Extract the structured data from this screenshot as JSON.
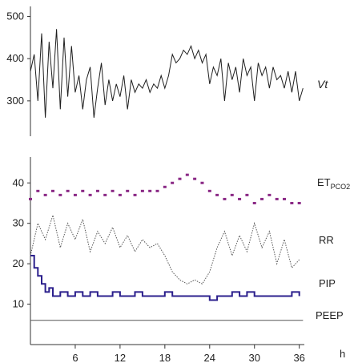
{
  "chart_data": [
    {
      "type": "line",
      "x_unit": "h",
      "xlim": [
        0,
        37
      ],
      "ylim": [
        220,
        520
      ],
      "yticks": [
        "300",
        "400",
        "500"
      ],
      "series": [
        {
          "name": "Vt",
          "color": "#1f1f1f",
          "x": [
            0,
            0.5,
            1,
            1.5,
            2,
            2.5,
            3,
            3.5,
            4,
            4.5,
            5,
            5.5,
            6,
            6.5,
            7,
            7.5,
            8,
            8.5,
            9,
            9.5,
            10,
            10.5,
            11,
            11.5,
            12,
            12.5,
            13,
            13.5,
            14,
            14.5,
            15,
            15.5,
            16,
            16.5,
            17,
            17.5,
            18,
            18.5,
            19,
            19.5,
            20,
            20.5,
            21,
            21.5,
            22,
            22.5,
            23,
            23.5,
            24,
            24.5,
            25,
            25.5,
            26,
            26.5,
            27,
            27.5,
            28,
            28.5,
            29,
            29.5,
            30,
            30.5,
            31,
            31.5,
            32,
            32.5,
            33,
            33.5,
            34,
            34.5,
            35,
            35.5,
            36,
            36.5
          ],
          "values": [
            370,
            410,
            300,
            460,
            260,
            440,
            330,
            470,
            280,
            450,
            310,
            430,
            320,
            360,
            280,
            350,
            380,
            260,
            330,
            390,
            290,
            350,
            300,
            340,
            310,
            360,
            280,
            350,
            320,
            340,
            330,
            350,
            320,
            340,
            330,
            360,
            330,
            360,
            410,
            390,
            400,
            420,
            410,
            430,
            400,
            420,
            390,
            410,
            340,
            380,
            360,
            400,
            300,
            390,
            350,
            380,
            320,
            400,
            360,
            380,
            300,
            390,
            360,
            380,
            330,
            380,
            350,
            360,
            330,
            370,
            320,
            370,
            300,
            330
          ]
        }
      ]
    },
    {
      "type": "line",
      "x_unit": "h",
      "xlim": [
        0,
        37
      ],
      "ylim": [
        0,
        46
      ],
      "xticks": [
        "6",
        "12",
        "18",
        "24",
        "30",
        "36"
      ],
      "xlabel": "h",
      "yticks": [
        "10",
        "20",
        "30",
        "40"
      ],
      "series": [
        {
          "name": "ET",
          "name_sub": "PCO2",
          "style": "dots",
          "color": "#8b2a86",
          "x": [
            0,
            1,
            2,
            3,
            4,
            5,
            6,
            7,
            8,
            9,
            10,
            11,
            12,
            13,
            14,
            15,
            16,
            17,
            18,
            19,
            20,
            21,
            22,
            23,
            24,
            25,
            26,
            27,
            28,
            29,
            30,
            31,
            32,
            33,
            34,
            35,
            36
          ],
          "values": [
            36,
            38,
            37,
            38,
            37,
            38,
            37,
            38,
            37,
            38,
            37,
            38,
            37,
            38,
            37,
            38,
            38,
            38,
            39,
            40,
            41,
            42,
            41,
            40,
            38,
            37,
            36,
            37,
            36,
            37,
            35,
            36,
            37,
            36,
            36,
            35,
            35
          ]
        },
        {
          "name": "RR",
          "style": "dotted",
          "color": "#555555",
          "x": [
            0,
            1,
            2,
            3,
            4,
            5,
            6,
            7,
            8,
            9,
            10,
            11,
            12,
            13,
            14,
            15,
            16,
            17,
            18,
            19,
            20,
            21,
            22,
            23,
            24,
            25,
            26,
            27,
            28,
            29,
            30,
            31,
            32,
            33,
            34,
            35,
            36
          ],
          "values": [
            22,
            30,
            26,
            32,
            24,
            30,
            26,
            31,
            23,
            28,
            25,
            29,
            24,
            27,
            23,
            26,
            24,
            25,
            22,
            18,
            16,
            15,
            16,
            15,
            18,
            24,
            28,
            22,
            27,
            23,
            30,
            24,
            28,
            20,
            26,
            19,
            21
          ]
        },
        {
          "name": "PIP",
          "style": "step",
          "color": "#2b1f8c",
          "x": [
            0,
            0.5,
            1,
            1.5,
            2,
            2.5,
            3,
            4,
            5,
            6,
            7,
            8,
            9,
            10,
            11,
            12,
            13,
            14,
            15,
            16,
            17,
            18,
            19,
            20,
            21,
            22,
            23,
            24,
            25,
            26,
            27,
            28,
            29,
            30,
            31,
            32,
            33,
            34,
            35,
            36
          ],
          "values": [
            22,
            19,
            17,
            15,
            13,
            14,
            12,
            13,
            12,
            13,
            12,
            13,
            12,
            12,
            13,
            12,
            12,
            13,
            12,
            12,
            12,
            13,
            12,
            12,
            12,
            12,
            12,
            11,
            12,
            12,
            13,
            12,
            13,
            12,
            12,
            12,
            12,
            12,
            13,
            12
          ]
        },
        {
          "name": "PEEP",
          "style": "line",
          "color": "#555555",
          "x": [
            0,
            36.5
          ],
          "values": [
            6,
            6
          ]
        }
      ]
    }
  ]
}
